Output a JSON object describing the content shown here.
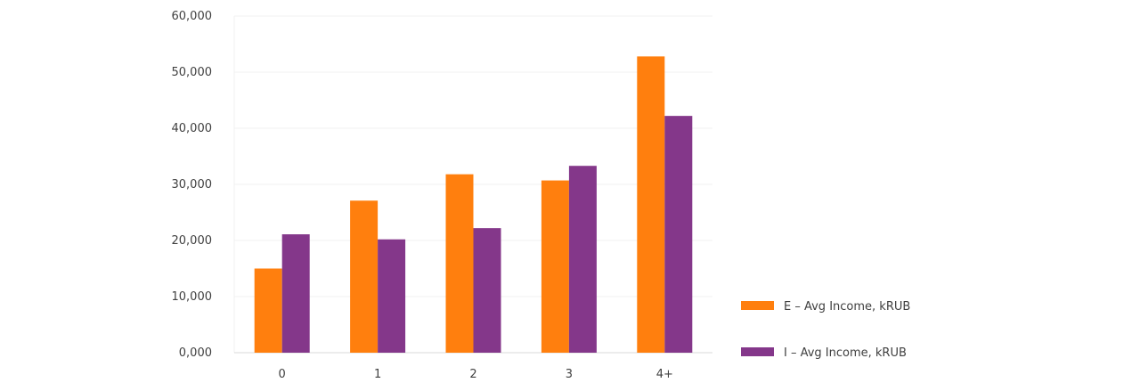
{
  "chart_data": {
    "type": "bar",
    "categories": [
      "0",
      "1",
      "2",
      "3",
      "4+"
    ],
    "series": [
      {
        "name": "E – Avg Income, kRUB",
        "color": "#ff7f0e",
        "values": [
          15000,
          27100,
          31800,
          30700,
          52800
        ]
      },
      {
        "name": "I – Avg Income, kRUB",
        "color": "#84378a",
        "values": [
          21100,
          20200,
          22200,
          33300,
          42200
        ]
      }
    ],
    "yticks": [
      "0,000",
      "10,000",
      "20,000",
      "30,000",
      "40,000",
      "50,000",
      "60,000"
    ],
    "ylim": [
      0,
      60000
    ],
    "grid": true,
    "legend": "bottom-right",
    "title": "",
    "xlabel": "",
    "ylabel": ""
  }
}
